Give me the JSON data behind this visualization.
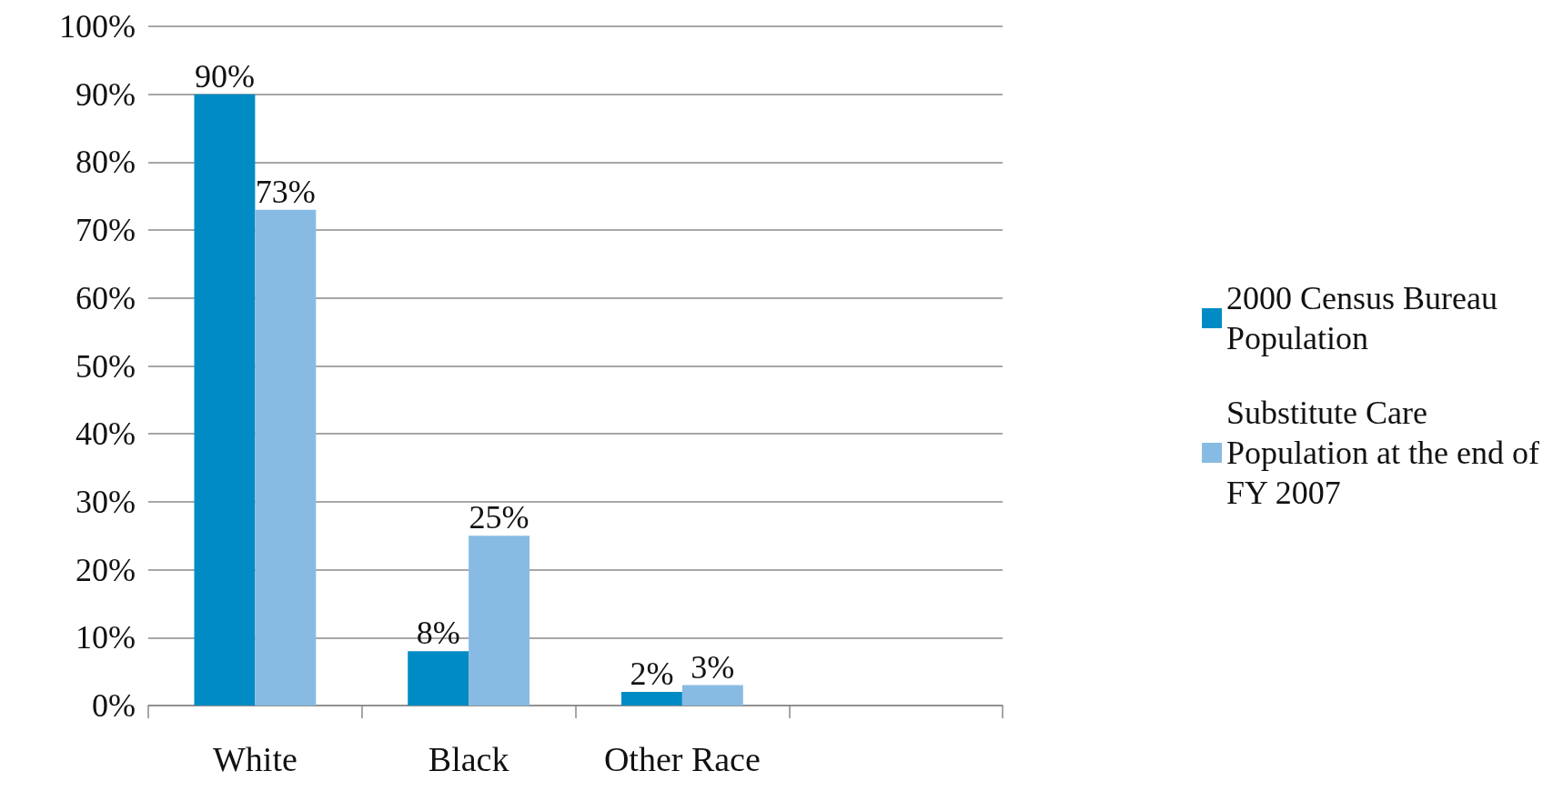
{
  "chart_data": {
    "type": "bar",
    "categories": [
      "White",
      "Black",
      "Other Race",
      null
    ],
    "series": [
      {
        "name": "2000 Census Bureau Population",
        "color": "#008bc4",
        "values": [
          90,
          8,
          2,
          null
        ],
        "value_labels": [
          "90%",
          "8%",
          "2%",
          null
        ]
      },
      {
        "name": "Substitute Care Population at the end of FY 2007",
        "color": "#87bbe3",
        "values": [
          73,
          25,
          3,
          null
        ],
        "value_labels": [
          "73%",
          "25%",
          "3%",
          null
        ]
      }
    ],
    "ylim": [
      0,
      100
    ],
    "yticks": [
      {
        "value": 0,
        "label": "0%"
      },
      {
        "value": 10,
        "label": "10%"
      },
      {
        "value": 20,
        "label": "20%"
      },
      {
        "value": 30,
        "label": "30%"
      },
      {
        "value": 40,
        "label": "40%"
      },
      {
        "value": 50,
        "label": "50%"
      },
      {
        "value": 60,
        "label": "60%"
      },
      {
        "value": 70,
        "label": "70%"
      },
      {
        "value": 80,
        "label": "80%"
      },
      {
        "value": 90,
        "label": "90%"
      },
      {
        "value": 100,
        "label": "100%"
      }
    ],
    "grid": "y",
    "legend": "right"
  }
}
